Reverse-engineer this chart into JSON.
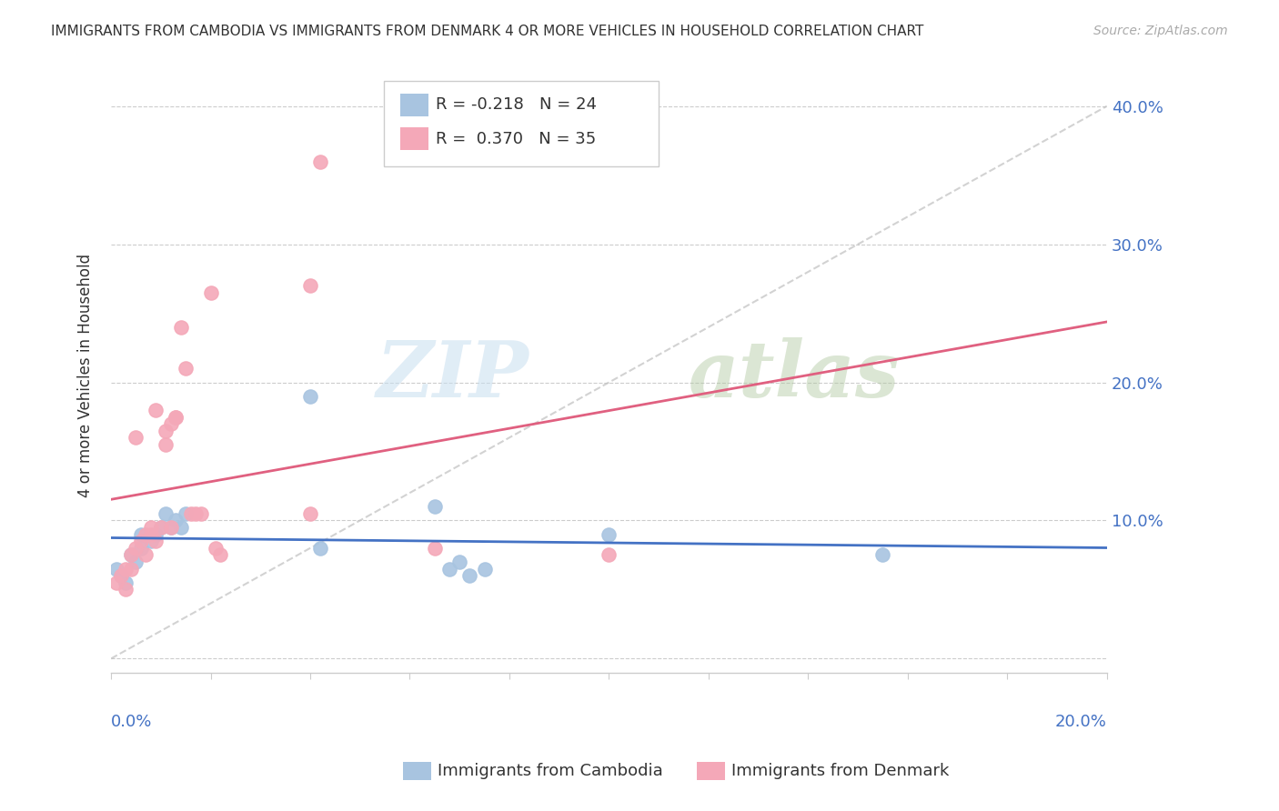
{
  "title": "IMMIGRANTS FROM CAMBODIA VS IMMIGRANTS FROM DENMARK 4 OR MORE VEHICLES IN HOUSEHOLD CORRELATION CHART",
  "source": "Source: ZipAtlas.com",
  "ylabel": "4 or more Vehicles in Household",
  "xlim": [
    0.0,
    0.2
  ],
  "ylim": [
    -0.01,
    0.42
  ],
  "cambodia_color": "#a8c4e0",
  "denmark_color": "#f4a8b8",
  "cambodia_line_color": "#4472c4",
  "denmark_line_color": "#e06080",
  "diagonal_color": "#c0c0c0",
  "legend_R_cambodia": "-0.218",
  "legend_N_cambodia": "24",
  "legend_R_denmark": "0.370",
  "legend_N_denmark": "35",
  "watermark_zip": "ZIP",
  "watermark_atlas": "atlas",
  "cambodia_x": [
    0.001,
    0.002,
    0.003,
    0.004,
    0.005,
    0.006,
    0.006,
    0.008,
    0.009,
    0.01,
    0.011,
    0.012,
    0.013,
    0.014,
    0.015,
    0.04,
    0.042,
    0.065,
    0.068,
    0.07,
    0.072,
    0.075,
    0.1,
    0.155
  ],
  "cambodia_y": [
    0.065,
    0.06,
    0.055,
    0.075,
    0.07,
    0.08,
    0.09,
    0.085,
    0.09,
    0.095,
    0.105,
    0.095,
    0.1,
    0.095,
    0.105,
    0.19,
    0.08,
    0.11,
    0.065,
    0.07,
    0.06,
    0.065,
    0.09,
    0.075
  ],
  "denmark_x": [
    0.001,
    0.002,
    0.003,
    0.003,
    0.004,
    0.004,
    0.005,
    0.005,
    0.006,
    0.007,
    0.007,
    0.008,
    0.008,
    0.009,
    0.009,
    0.01,
    0.011,
    0.011,
    0.012,
    0.012,
    0.013,
    0.013,
    0.014,
    0.015,
    0.016,
    0.017,
    0.018,
    0.02,
    0.021,
    0.022,
    0.04,
    0.042,
    0.065,
    0.1,
    0.04
  ],
  "denmark_y": [
    0.055,
    0.06,
    0.05,
    0.065,
    0.065,
    0.075,
    0.08,
    0.16,
    0.085,
    0.075,
    0.09,
    0.09,
    0.095,
    0.18,
    0.085,
    0.095,
    0.155,
    0.165,
    0.17,
    0.095,
    0.175,
    0.175,
    0.24,
    0.21,
    0.105,
    0.105,
    0.105,
    0.265,
    0.08,
    0.075,
    0.105,
    0.36,
    0.08,
    0.075,
    0.27
  ]
}
